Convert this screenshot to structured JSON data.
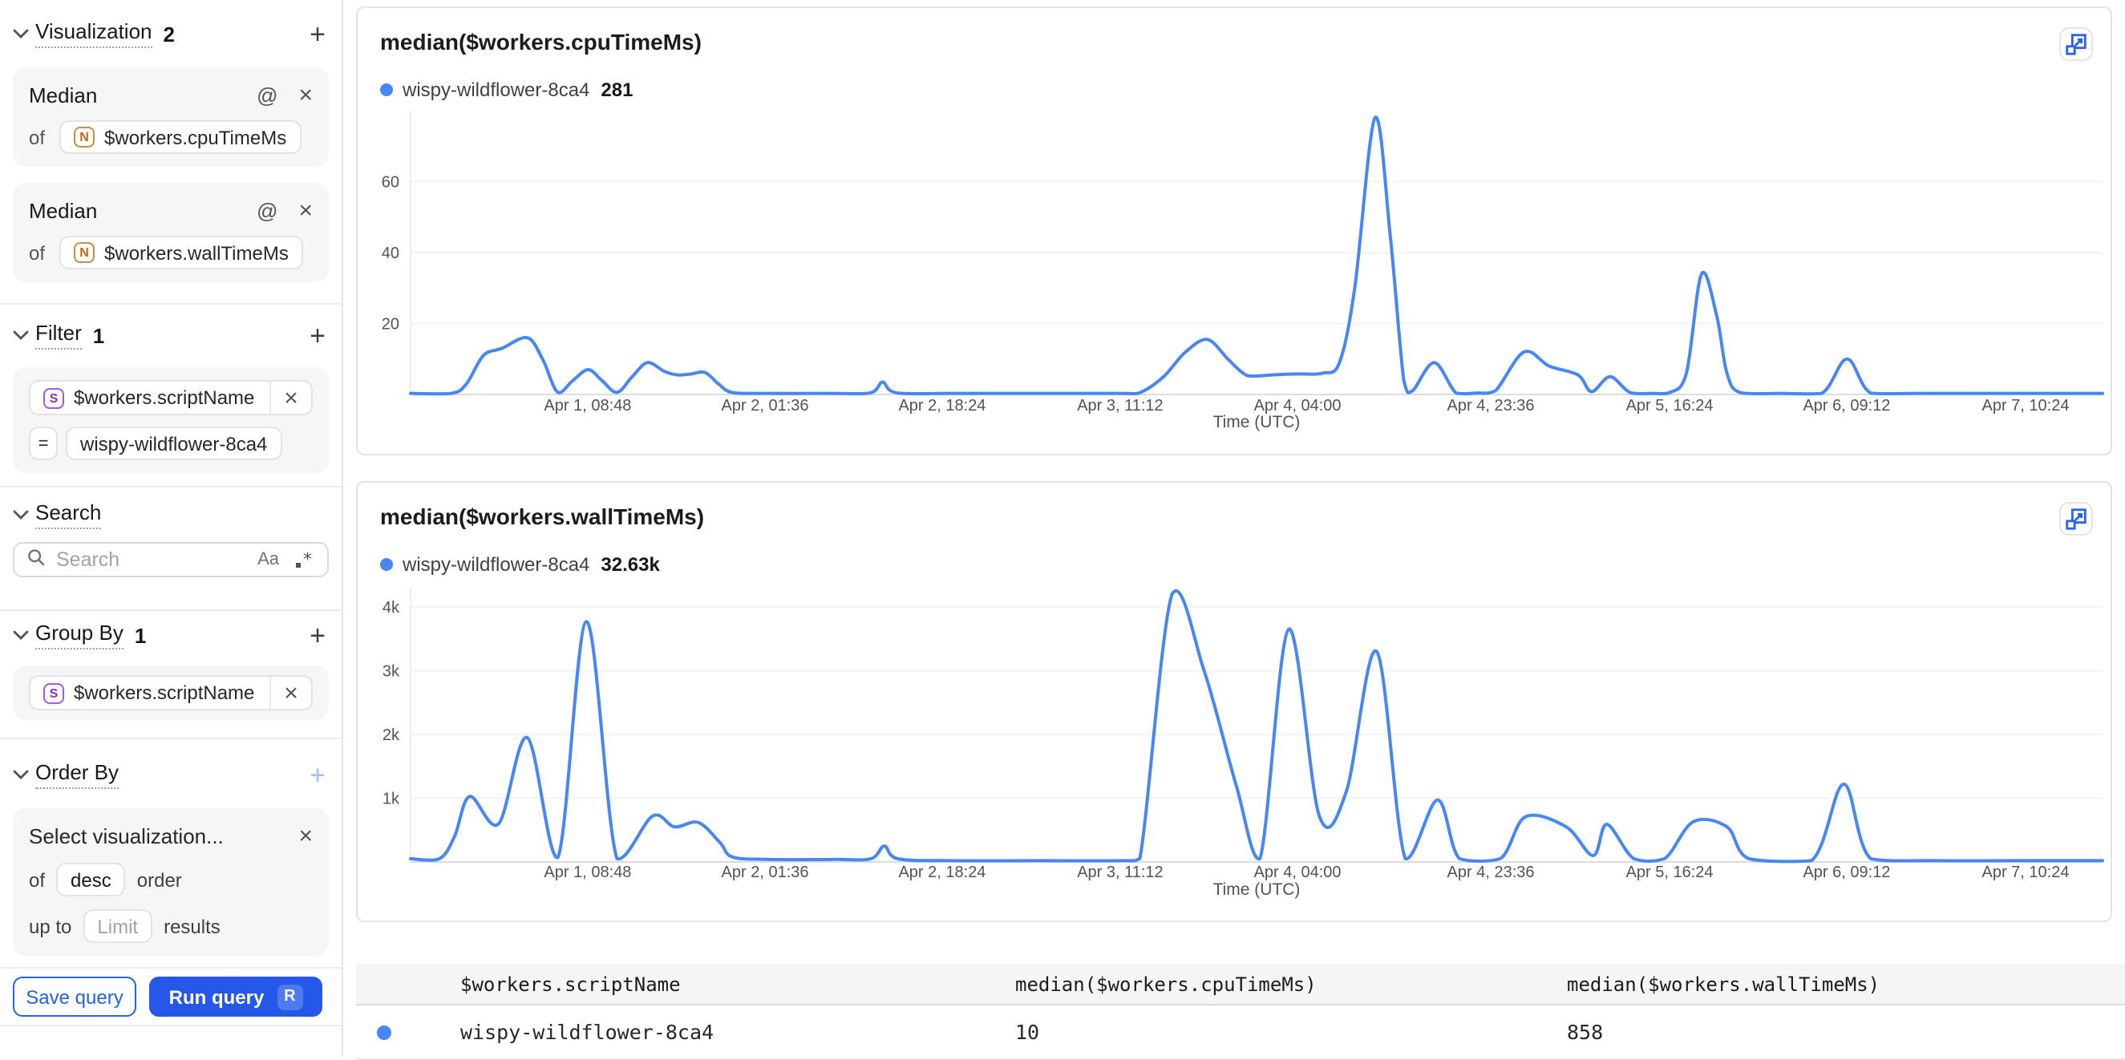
{
  "sidebar": {
    "visualization": {
      "title": "Visualization",
      "count": "2",
      "items": [
        {
          "aggregation": "Median",
          "of_label": "of",
          "field": "$workers.cpuTimeMs",
          "field_type": "N"
        },
        {
          "aggregation": "Median",
          "of_label": "of",
          "field": "$workers.wallTimeMs",
          "field_type": "N"
        }
      ]
    },
    "filter": {
      "title": "Filter",
      "count": "1",
      "field": "$workers.scriptName",
      "field_type": "S",
      "operator": "=",
      "value": "wispy-wildflower-8ca4"
    },
    "search": {
      "title": "Search",
      "placeholder": "Search",
      "match_case_icon": "Aa"
    },
    "group_by": {
      "title": "Group By",
      "count": "1",
      "field": "$workers.scriptName",
      "field_type": "S"
    },
    "order_by": {
      "title": "Order By",
      "selection_placeholder": "Select visualization...",
      "of_label": "of",
      "direction": "desc",
      "order_label": "order",
      "up_to_label": "up to",
      "limit_placeholder": "Limit",
      "results_label": "results"
    },
    "footer": {
      "save_label": "Save query",
      "run_label": "Run query",
      "run_shortcut": "R"
    }
  },
  "charts": [
    {
      "chart_data": {
        "type": "line",
        "title": "median($workers.cpuTimeMs)",
        "legend_value": "281",
        "legend_position": "top-left",
        "x_axis_label": "Time (UTC)",
        "grid": "horizontal",
        "ylim": [
          0,
          78
        ],
        "y_ticks": [
          {
            "value": 20,
            "label": "20"
          },
          {
            "value": 40,
            "label": "40"
          },
          {
            "value": 60,
            "label": "60"
          }
        ],
        "x_ticks": [
          {
            "pos": 0.1047,
            "label": "Apr 1, 08:48"
          },
          {
            "pos": 0.2095,
            "label": "Apr 2, 01:36"
          },
          {
            "pos": 0.3142,
            "label": "Apr 2, 18:24"
          },
          {
            "pos": 0.4194,
            "label": "Apr 3, 11:12"
          },
          {
            "pos": 0.5242,
            "label": "Apr 4, 04:00"
          },
          {
            "pos": 0.6384,
            "label": "Apr 4, 23:36"
          },
          {
            "pos": 0.7441,
            "label": "Apr 5, 16:24"
          },
          {
            "pos": 0.8488,
            "label": "Apr 6, 09:12"
          },
          {
            "pos": 0.9545,
            "label": "Apr 7, 10:24"
          }
        ],
        "series": [
          {
            "name": "wispy-wildflower-8ca4",
            "points": [
              [
                0,
                0.3
              ],
              [
                0.024,
                0.3
              ],
              [
                0.033,
                3
              ],
              [
                0.043,
                11
              ],
              [
                0.054,
                13
              ],
              [
                0.069,
                16
              ],
              [
                0.078,
                10
              ],
              [
                0.087,
                0.6
              ],
              [
                0.096,
                4
              ],
              [
                0.105,
                7
              ],
              [
                0.113,
                4
              ],
              [
                0.122,
                0.6
              ],
              [
                0.131,
                5
              ],
              [
                0.14,
                9
              ],
              [
                0.15,
                6.5
              ],
              [
                0.158,
                5.5
              ],
              [
                0.166,
                5.8
              ],
              [
                0.174,
                6.2
              ],
              [
                0.182,
                3
              ],
              [
                0.19,
                0.6
              ],
              [
                0.21,
                0.3
              ],
              [
                0.25,
                0.3
              ],
              [
                0.272,
                0.5
              ],
              [
                0.279,
                3.5
              ],
              [
                0.287,
                0.5
              ],
              [
                0.32,
                0.3
              ],
              [
                0.37,
                0.3
              ],
              [
                0.42,
                0.3
              ],
              [
                0.431,
                0.5
              ],
              [
                0.445,
                5
              ],
              [
                0.458,
                12
              ],
              [
                0.471,
                15.5
              ],
              [
                0.483,
                10
              ],
              [
                0.492,
                6
              ],
              [
                0.498,
                5.2
              ],
              [
                0.512,
                5.6
              ],
              [
                0.525,
                5.8
              ],
              [
                0.539,
                6
              ],
              [
                0.549,
                9
              ],
              [
                0.558,
                30
              ],
              [
                0.57,
                78
              ],
              [
                0.579,
                45
              ],
              [
                0.587,
                4
              ],
              [
                0.592,
                1
              ],
              [
                0.605,
                9
              ],
              [
                0.618,
                0.4
              ],
              [
                0.63,
                0.4
              ],
              [
                0.641,
                1
              ],
              [
                0.658,
                12
              ],
              [
                0.673,
                8
              ],
              [
                0.69,
                5.5
              ],
              [
                0.698,
                0.8
              ],
              [
                0.709,
                5
              ],
              [
                0.721,
                0.5
              ],
              [
                0.735,
                0.3
              ],
              [
                0.744,
                0.5
              ],
              [
                0.754,
                6
              ],
              [
                0.763,
                34
              ],
              [
                0.772,
                22
              ],
              [
                0.778,
                6
              ],
              [
                0.786,
                0.5
              ],
              [
                0.81,
                0.3
              ],
              [
                0.834,
                0.3
              ],
              [
                0.849,
                10
              ],
              [
                0.863,
                0.4
              ],
              [
                0.89,
                0.3
              ],
              [
                0.93,
                0.3
              ],
              [
                0.97,
                0.3
              ],
              [
                1,
                0.3
              ]
            ]
          }
        ]
      }
    },
    {
      "chart_data": {
        "type": "line",
        "title": "median($workers.wallTimeMs)",
        "legend_value": "32.63k",
        "legend_position": "top-left",
        "x_axis_label": "Time (UTC)",
        "grid": "horizontal",
        "ylim": [
          0,
          4200
        ],
        "y_unit": "k",
        "y_ticks": [
          {
            "value": 1,
            "label": "1k"
          },
          {
            "value": 2,
            "label": "2k"
          },
          {
            "value": 3,
            "label": "3k"
          },
          {
            "value": 4,
            "label": "4k"
          }
        ],
        "x_ticks": [
          {
            "pos": 0.1047,
            "label": "Apr 1, 08:48"
          },
          {
            "pos": 0.2095,
            "label": "Apr 2, 01:36"
          },
          {
            "pos": 0.3142,
            "label": "Apr 2, 18:24"
          },
          {
            "pos": 0.4194,
            "label": "Apr 3, 11:12"
          },
          {
            "pos": 0.5242,
            "label": "Apr 4, 04:00"
          },
          {
            "pos": 0.6384,
            "label": "Apr 4, 23:36"
          },
          {
            "pos": 0.7441,
            "label": "Apr 5, 16:24"
          },
          {
            "pos": 0.8488,
            "label": "Apr 6, 09:12"
          },
          {
            "pos": 0.9545,
            "label": "Apr 7, 10:24"
          }
        ],
        "series": [
          {
            "name": "wispy-wildflower-8ca4",
            "points": [
              [
                0,
                0.05
              ],
              [
                0.017,
                0.05
              ],
              [
                0.026,
                0.4
              ],
              [
                0.035,
                1.03
              ],
              [
                0.052,
                0.6
              ],
              [
                0.069,
                1.95
              ],
              [
                0.087,
                0.07
              ],
              [
                0.104,
                3.77
              ],
              [
                0.122,
                0.05
              ],
              [
                0.143,
                0.72
              ],
              [
                0.156,
                0.55
              ],
              [
                0.17,
                0.62
              ],
              [
                0.183,
                0.3
              ],
              [
                0.19,
                0.08
              ],
              [
                0.21,
                0.04
              ],
              [
                0.25,
                0.04
              ],
              [
                0.272,
                0.05
              ],
              [
                0.28,
                0.25
              ],
              [
                0.288,
                0.05
              ],
              [
                0.32,
                0.02
              ],
              [
                0.37,
                0.02
              ],
              [
                0.42,
                0.02
              ],
              [
                0.431,
                0.05
              ],
              [
                0.45,
                4.2
              ],
              [
                0.469,
                3
              ],
              [
                0.488,
                1.2
              ],
              [
                0.502,
                0.05
              ],
              [
                0.519,
                3.65
              ],
              [
                0.537,
                0.73
              ],
              [
                0.553,
                1.1
              ],
              [
                0.571,
                3.3
              ],
              [
                0.588,
                0.05
              ],
              [
                0.607,
                0.97
              ],
              [
                0.62,
                0.05
              ],
              [
                0.644,
                0.05
              ],
              [
                0.659,
                0.71
              ],
              [
                0.683,
                0.55
              ],
              [
                0.699,
                0.1
              ],
              [
                0.707,
                0.59
              ],
              [
                0.723,
                0.05
              ],
              [
                0.741,
                0.05
              ],
              [
                0.758,
                0.63
              ],
              [
                0.778,
                0.55
              ],
              [
                0.791,
                0.05
              ],
              [
                0.828,
                0.02
              ],
              [
                0.847,
                1.22
              ],
              [
                0.863,
                0.05
              ],
              [
                0.9,
                0.02
              ],
              [
                0.95,
                0.02
              ],
              [
                1,
                0.02
              ]
            ]
          }
        ]
      }
    }
  ],
  "table": {
    "headers": [
      "$workers.scriptName",
      "median($workers.cpuTimeMs)",
      "median($workers.wallTimeMs)"
    ],
    "row": {
      "cells": [
        "wispy-wildflower-8ca4",
        "10",
        "858"
      ]
    }
  },
  "colors": {
    "line_blue": "#4687f4",
    "accent_blue": "#2557e8",
    "badge_number_orange": "#c2660a",
    "badge_string_purple": "#8b31c9"
  }
}
